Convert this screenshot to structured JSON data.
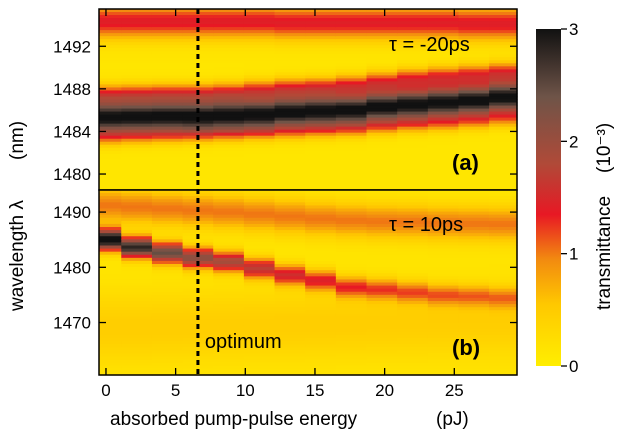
{
  "chart_data": [
    {
      "panel": "(a)",
      "type": "heatmap",
      "annotation": "τ = -20ps",
      "xlim": [
        -0.5,
        29.5
      ],
      "ylim": [
        1478.5,
        1495.5
      ],
      "yticks": [
        "1480",
        "1484",
        "1488",
        "1492"
      ],
      "yticks_values": [
        1480,
        1484,
        1488,
        1492
      ],
      "columns_x": [
        0,
        2.2,
        4.4,
        6.6,
        8.8,
        11,
        13.2,
        15.4,
        17.6,
        19.8,
        22,
        24.2,
        26.4,
        28.6
      ],
      "peaks": [
        {
          "name": "main",
          "center": [
            1485.3,
            1485.35,
            1485.4,
            1485.4,
            1485.5,
            1485.6,
            1485.8,
            1485.9,
            1486.0,
            1486.3,
            1486.5,
            1486.7,
            1486.9,
            1487.2
          ],
          "width": 1.0,
          "amplitude": 3.0
        },
        {
          "name": "upper",
          "center": [
            1487.4,
            1487.45,
            1487.5,
            1487.5,
            1487.6,
            1487.8,
            1488.0,
            1488.1,
            1488.3,
            1488.6,
            1488.9,
            1489.1,
            1489.3,
            1489.5
          ],
          "width": 0.7,
          "amplitude": 1.2
        },
        {
          "name": "top",
          "center": [
            1494.3,
            1494.3,
            1494.3,
            1494.3,
            1494.3,
            1494.3,
            1494.2,
            1494.2,
            1494.2,
            1494.2,
            1494.2,
            1494.2,
            1494.1,
            1494.1
          ],
          "width": 1.1,
          "amplitude": 1.3
        },
        {
          "name": "lower",
          "center": [
            1483.5,
            1483.6,
            1483.7,
            1483.8,
            1483.9,
            1484.0,
            1484.1,
            1484.2,
            1484.3,
            1484.5,
            1484.7,
            1484.8,
            1485.0,
            1485.2
          ],
          "width": 0.6,
          "amplitude": 0.7
        }
      ]
    },
    {
      "panel": "(b)",
      "type": "heatmap",
      "annotation": "τ = 10ps",
      "xlim": [
        -0.5,
        29.5
      ],
      "ylim": [
        1460.5,
        1494
      ],
      "yticks": [
        "1470",
        "1480",
        "1490"
      ],
      "yticks_values": [
        1470,
        1480,
        1490
      ],
      "columns_x": [
        0,
        2.2,
        4.4,
        6.6,
        8.8,
        11,
        13.2,
        15.4,
        17.6,
        19.8,
        22,
        24.2,
        26.4,
        28.6
      ],
      "peaks": [
        {
          "name": "main",
          "center": [
            1485.0,
            1483.6,
            1482.6,
            1481.7,
            1481.0,
            1479.8,
            1478.6,
            1477.6,
            1476.4,
            1476.0,
            1475.5,
            1475.0,
            1474.8,
            1474.5
          ],
          "width": 1.3,
          "amplitude": 2.6,
          "decay": 0.19
        },
        {
          "name": "upper",
          "center": [
            1491.2,
            1490.9,
            1490.6,
            1490.3,
            1490.0,
            1489.6,
            1489.2,
            1488.8,
            1488.5,
            1488.3,
            1488.2,
            1488.0,
            1487.9,
            1487.8
          ],
          "width": 2.2,
          "amplitude": 0.9
        },
        {
          "name": "broad-low",
          "center": [
            1469.0,
            1469.0,
            1469.2,
            1469.3,
            1469.4,
            1469.5,
            1469.6,
            1469.7,
            1469.8,
            1469.9,
            1470.0,
            1470.1,
            1470.2,
            1470.3
          ],
          "width": 4.5,
          "amplitude": 0.35
        }
      ]
    }
  ],
  "xaxis": {
    "label": "absorbed pump-pulse energy",
    "unit": "(pJ)",
    "ticks": [
      "0",
      "5",
      "10",
      "15",
      "20",
      "25"
    ],
    "ticks_values": [
      0,
      5,
      10,
      15,
      20,
      25
    ]
  },
  "yaxis": {
    "label_text": "wavelength λ",
    "unit": "(nm)"
  },
  "optimum": {
    "x": 6.6,
    "label": "optimum"
  },
  "colorbar": {
    "label": "transmittance",
    "unit": "(10⁻³)",
    "ticks": [
      "0",
      "1",
      "2",
      "3"
    ],
    "ticks_values": [
      0,
      1,
      2,
      3
    ],
    "range": [
      0,
      3
    ],
    "stops": [
      {
        "v": 0.0,
        "color": "#ffee00"
      },
      {
        "v": 0.55,
        "color": "#ffc800"
      },
      {
        "v": 0.95,
        "color": "#f28a10"
      },
      {
        "v": 1.35,
        "color": "#e81824"
      },
      {
        "v": 1.8,
        "color": "#b04a38"
      },
      {
        "v": 2.4,
        "color": "#6e5448"
      },
      {
        "v": 3.0,
        "color": "#111111"
      }
    ]
  }
}
